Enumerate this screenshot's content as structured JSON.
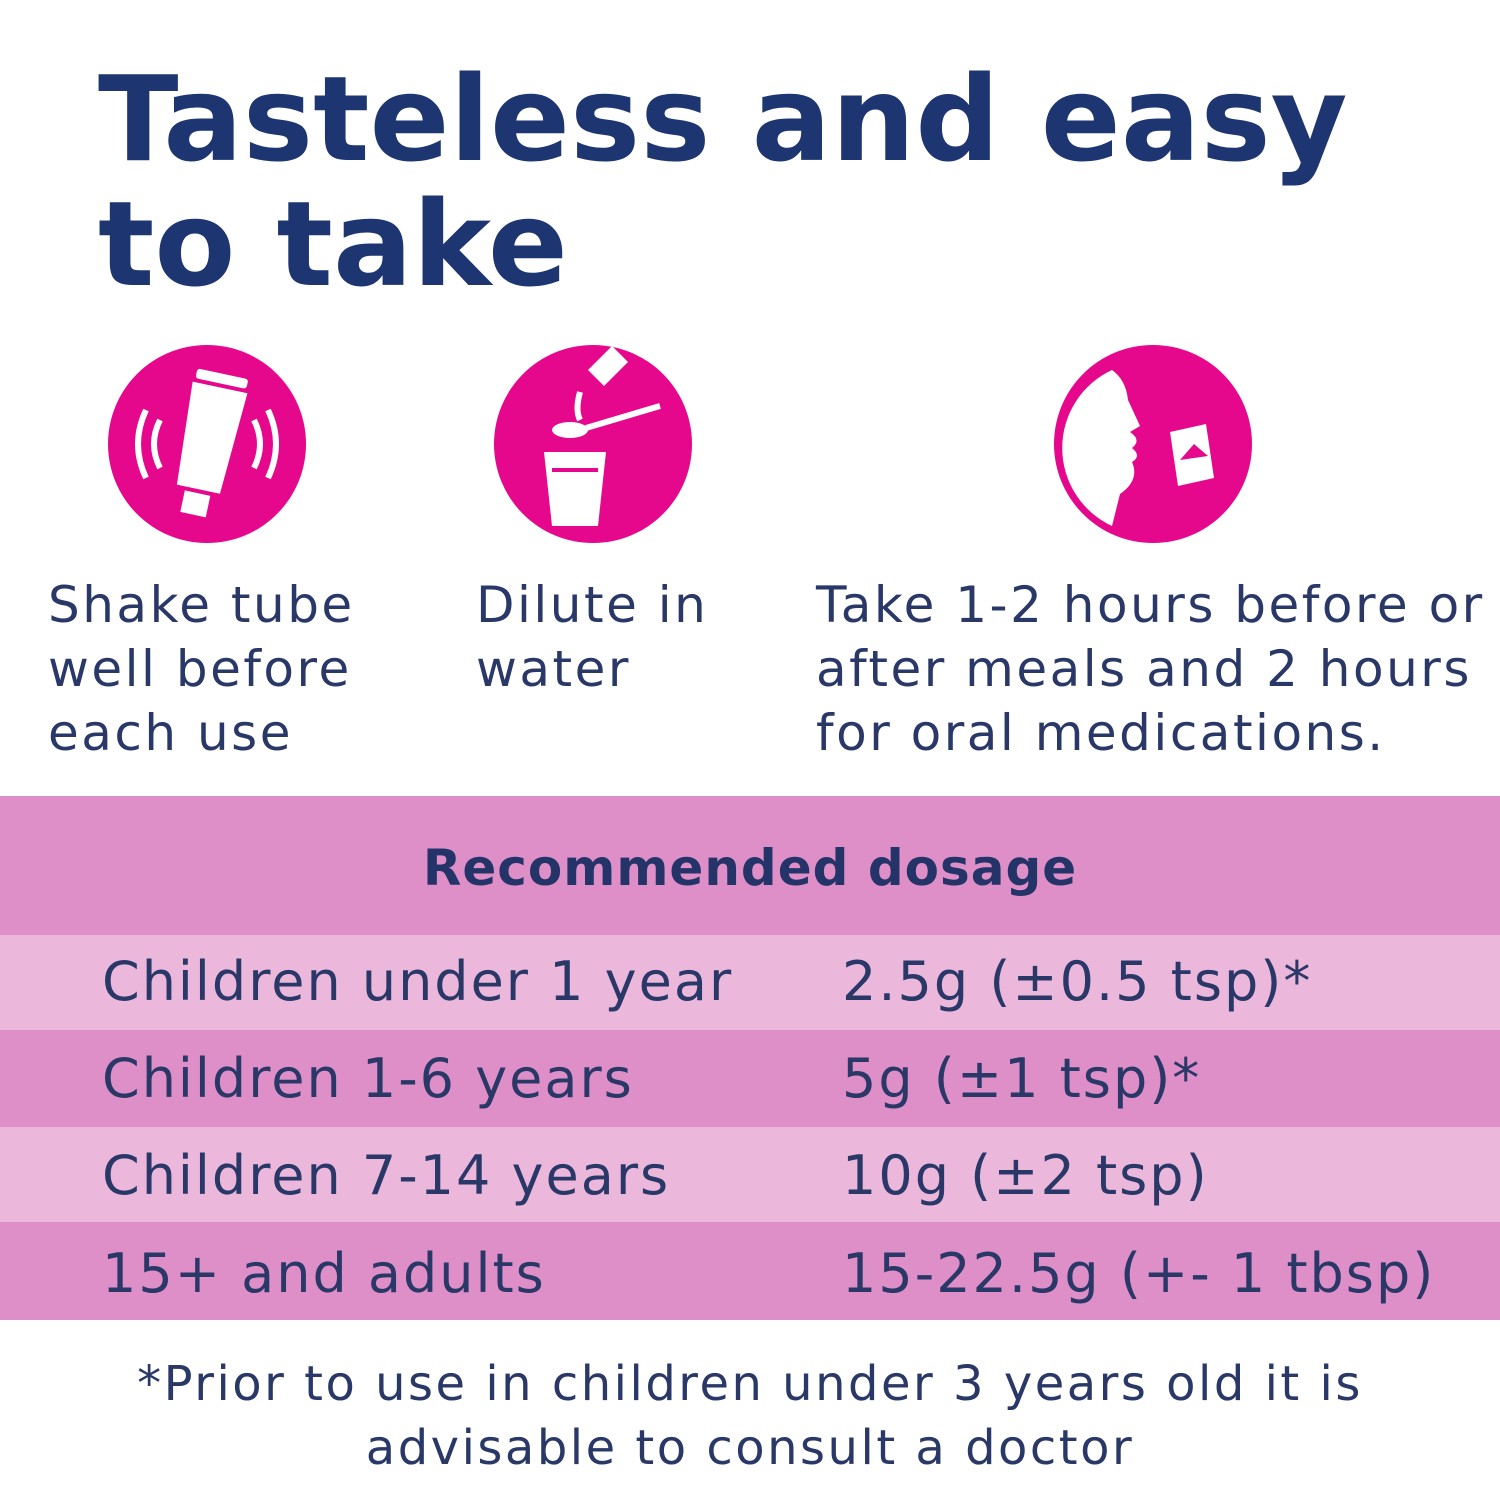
{
  "title": {
    "lines": [
      "Tasteless and easy",
      "to take"
    ]
  },
  "steps": [
    {
      "lines": [
        "Shake tube",
        "well before",
        "each use"
      ]
    },
    {
      "lines": [
        "Dilute in",
        "water"
      ]
    },
    {
      "lines": [
        "Take 1-2 hours before or",
        "after meals and 2 hours",
        "for oral medications."
      ]
    }
  ],
  "table": {
    "header": "Recommended dosage",
    "rows": [
      [
        "Children under 1 year",
        "2.5g (±0.5 tsp)*"
      ],
      [
        "Children 1-6 years",
        "5g (±1 tsp)*"
      ],
      [
        "Children 7-14 years",
        "10g (±2 tsp)"
      ],
      [
        "15+ and adults",
        "15-22.5g (+- 1 tbsp)"
      ]
    ]
  },
  "footnote": {
    "lines": [
      "*Prior to use in children under 3 years old it is",
      "advisable to consult a doctor"
    ]
  }
}
